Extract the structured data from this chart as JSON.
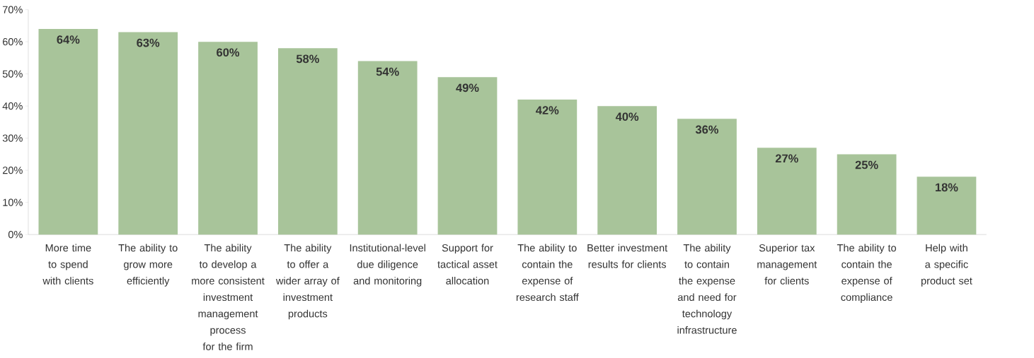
{
  "chart_data": {
    "type": "bar",
    "categories": [
      "More time to spend with clients",
      "The ability to grow more efficiently",
      "The ability to develop a more consistent investment management process for the firm",
      "The ability to offer a wider array of investment products",
      "Institutional-level due diligence and monitoring",
      "Support for tactical asset allocation",
      "The ability to contain the expense of research staff",
      "Better investment results for clients",
      "The ability to contain the expense and need for technology infrastructure",
      "Superior tax management for clients",
      "The ability to contain the expense of compliance",
      "Help with a specific product set"
    ],
    "values": [
      64,
      63,
      60,
      58,
      54,
      49,
      42,
      40,
      36,
      27,
      25,
      18
    ],
    "value_labels": [
      "64%",
      "63%",
      "60%",
      "58%",
      "54%",
      "49%",
      "42%",
      "40%",
      "36%",
      "27%",
      "25%",
      "18%"
    ],
    "color": "#a8c49a",
    "ylim": [
      0,
      70
    ],
    "yticks": [
      {
        "value": 0,
        "label": "0%"
      },
      {
        "value": 10,
        "label": "10%"
      },
      {
        "value": 20,
        "label": "20%"
      },
      {
        "value": 30,
        "label": "30%"
      },
      {
        "value": 40,
        "label": "40%"
      },
      {
        "value": 50,
        "label": "50%"
      },
      {
        "value": 60,
        "label": "60%"
      },
      {
        "value": 70,
        "label": "70%"
      }
    ]
  }
}
